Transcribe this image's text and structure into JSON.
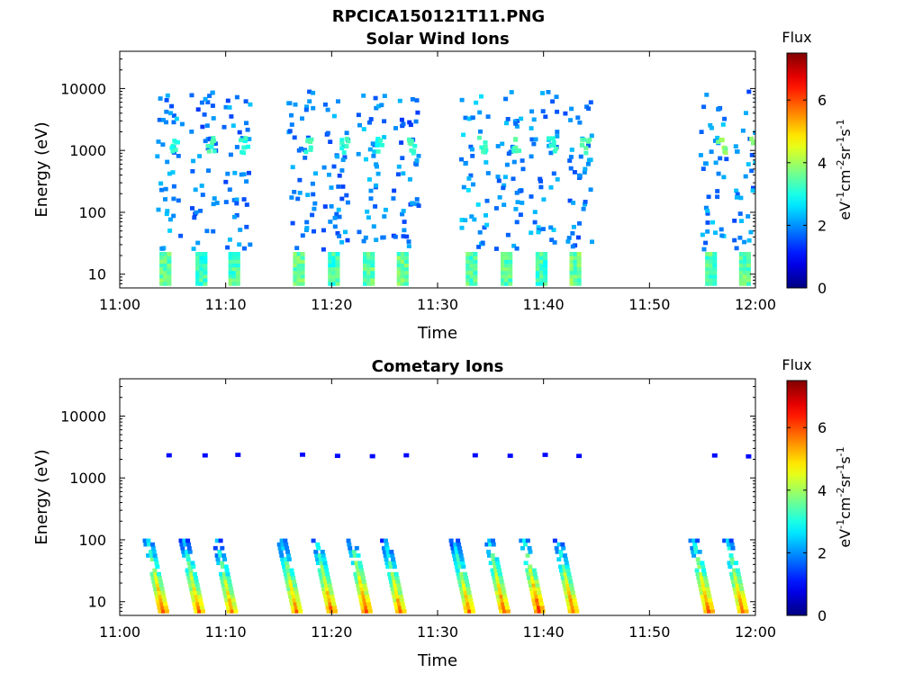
{
  "figure_title": "RPCICA150121T11.PNG",
  "chart_data": [
    {
      "type": "heatmap",
      "title": "Solar Wind Ions",
      "xlabel": "Time",
      "ylabel": "Energy (eV)",
      "x_range": [
        "11:00",
        "12:00"
      ],
      "x_ticks": [
        "11:00",
        "11:10",
        "11:20",
        "11:30",
        "11:40",
        "11:50",
        "12:00"
      ],
      "y_scale": "log",
      "y_range": [
        6,
        40000
      ],
      "y_ticks": [
        "10",
        "100",
        "1000",
        "10000"
      ],
      "colorbar": {
        "title": "Flux",
        "label": "eV-1cm-2sr-1s-1",
        "range": [
          0,
          7.5
        ],
        "ticks": [
          "0",
          "2",
          "4",
          "6"
        ],
        "colormap": "jet"
      },
      "events": [
        {
          "t": 4.1,
          "low_flux": 3.5,
          "mid_flux": 2.8,
          "high_flux": 1.5
        },
        {
          "t": 7.5,
          "low_flux": 3.2,
          "mid_flux": 3.0,
          "high_flux": 1.3
        },
        {
          "t": 10.6,
          "low_flux": 3.4,
          "mid_flux": 2.9,
          "high_flux": 1.4
        },
        {
          "t": 16.7,
          "low_flux": 3.6,
          "mid_flux": 3.0,
          "high_flux": 1.3
        },
        {
          "t": 20.0,
          "low_flux": 3.3,
          "mid_flux": 2.9,
          "high_flux": 1.4
        },
        {
          "t": 23.3,
          "low_flux": 3.5,
          "mid_flux": 2.8,
          "high_flux": 1.5
        },
        {
          "t": 26.5,
          "low_flux": 3.6,
          "mid_flux": 3.0,
          "high_flux": 1.3
        },
        {
          "t": 33.0,
          "low_flux": 3.4,
          "mid_flux": 3.0,
          "high_flux": 1.6
        },
        {
          "t": 36.3,
          "low_flux": 3.5,
          "mid_flux": 3.1,
          "high_flux": 1.4
        },
        {
          "t": 39.6,
          "low_flux": 3.3,
          "mid_flux": 3.0,
          "high_flux": 1.5
        },
        {
          "t": 42.8,
          "low_flux": 3.6,
          "mid_flux": 3.1,
          "high_flux": 1.4
        },
        {
          "t": 55.6,
          "low_flux": 3.4,
          "mid_flux": 3.6,
          "high_flux": 1.5
        },
        {
          "t": 58.8,
          "low_flux": 3.5,
          "mid_flux": 3.5,
          "high_flux": 1.4
        }
      ]
    },
    {
      "type": "heatmap",
      "title": "Cometary Ions",
      "xlabel": "Time",
      "ylabel": "Energy (eV)",
      "x_range": [
        "11:00",
        "12:00"
      ],
      "x_ticks": [
        "11:00",
        "11:10",
        "11:20",
        "11:30",
        "11:40",
        "11:50",
        "12:00"
      ],
      "y_scale": "log",
      "y_range": [
        6,
        40000
      ],
      "y_ticks": [
        "10",
        "100",
        "1000",
        "10000"
      ],
      "colorbar": {
        "title": "Flux",
        "label": "eV-1cm-2sr-1s-1",
        "range": [
          0,
          7.5
        ],
        "ticks": [
          "0",
          "2",
          "4",
          "6"
        ],
        "colormap": "jet"
      },
      "events": [
        {
          "t": 4.1,
          "peak_flux": 6.0
        },
        {
          "t": 7.5,
          "peak_flux": 5.8
        },
        {
          "t": 10.6,
          "peak_flux": 5.6
        },
        {
          "t": 16.7,
          "peak_flux": 5.8
        },
        {
          "t": 20.0,
          "peak_flux": 5.9
        },
        {
          "t": 23.3,
          "peak_flux": 6.1
        },
        {
          "t": 26.5,
          "peak_flux": 5.7
        },
        {
          "t": 33.0,
          "peak_flux": 5.8
        },
        {
          "t": 36.3,
          "peak_flux": 6.0
        },
        {
          "t": 39.6,
          "peak_flux": 6.2
        },
        {
          "t": 42.8,
          "peak_flux": 5.9
        },
        {
          "t": 55.6,
          "peak_flux": 6.0
        },
        {
          "t": 58.8,
          "peak_flux": 5.9
        }
      ]
    }
  ]
}
